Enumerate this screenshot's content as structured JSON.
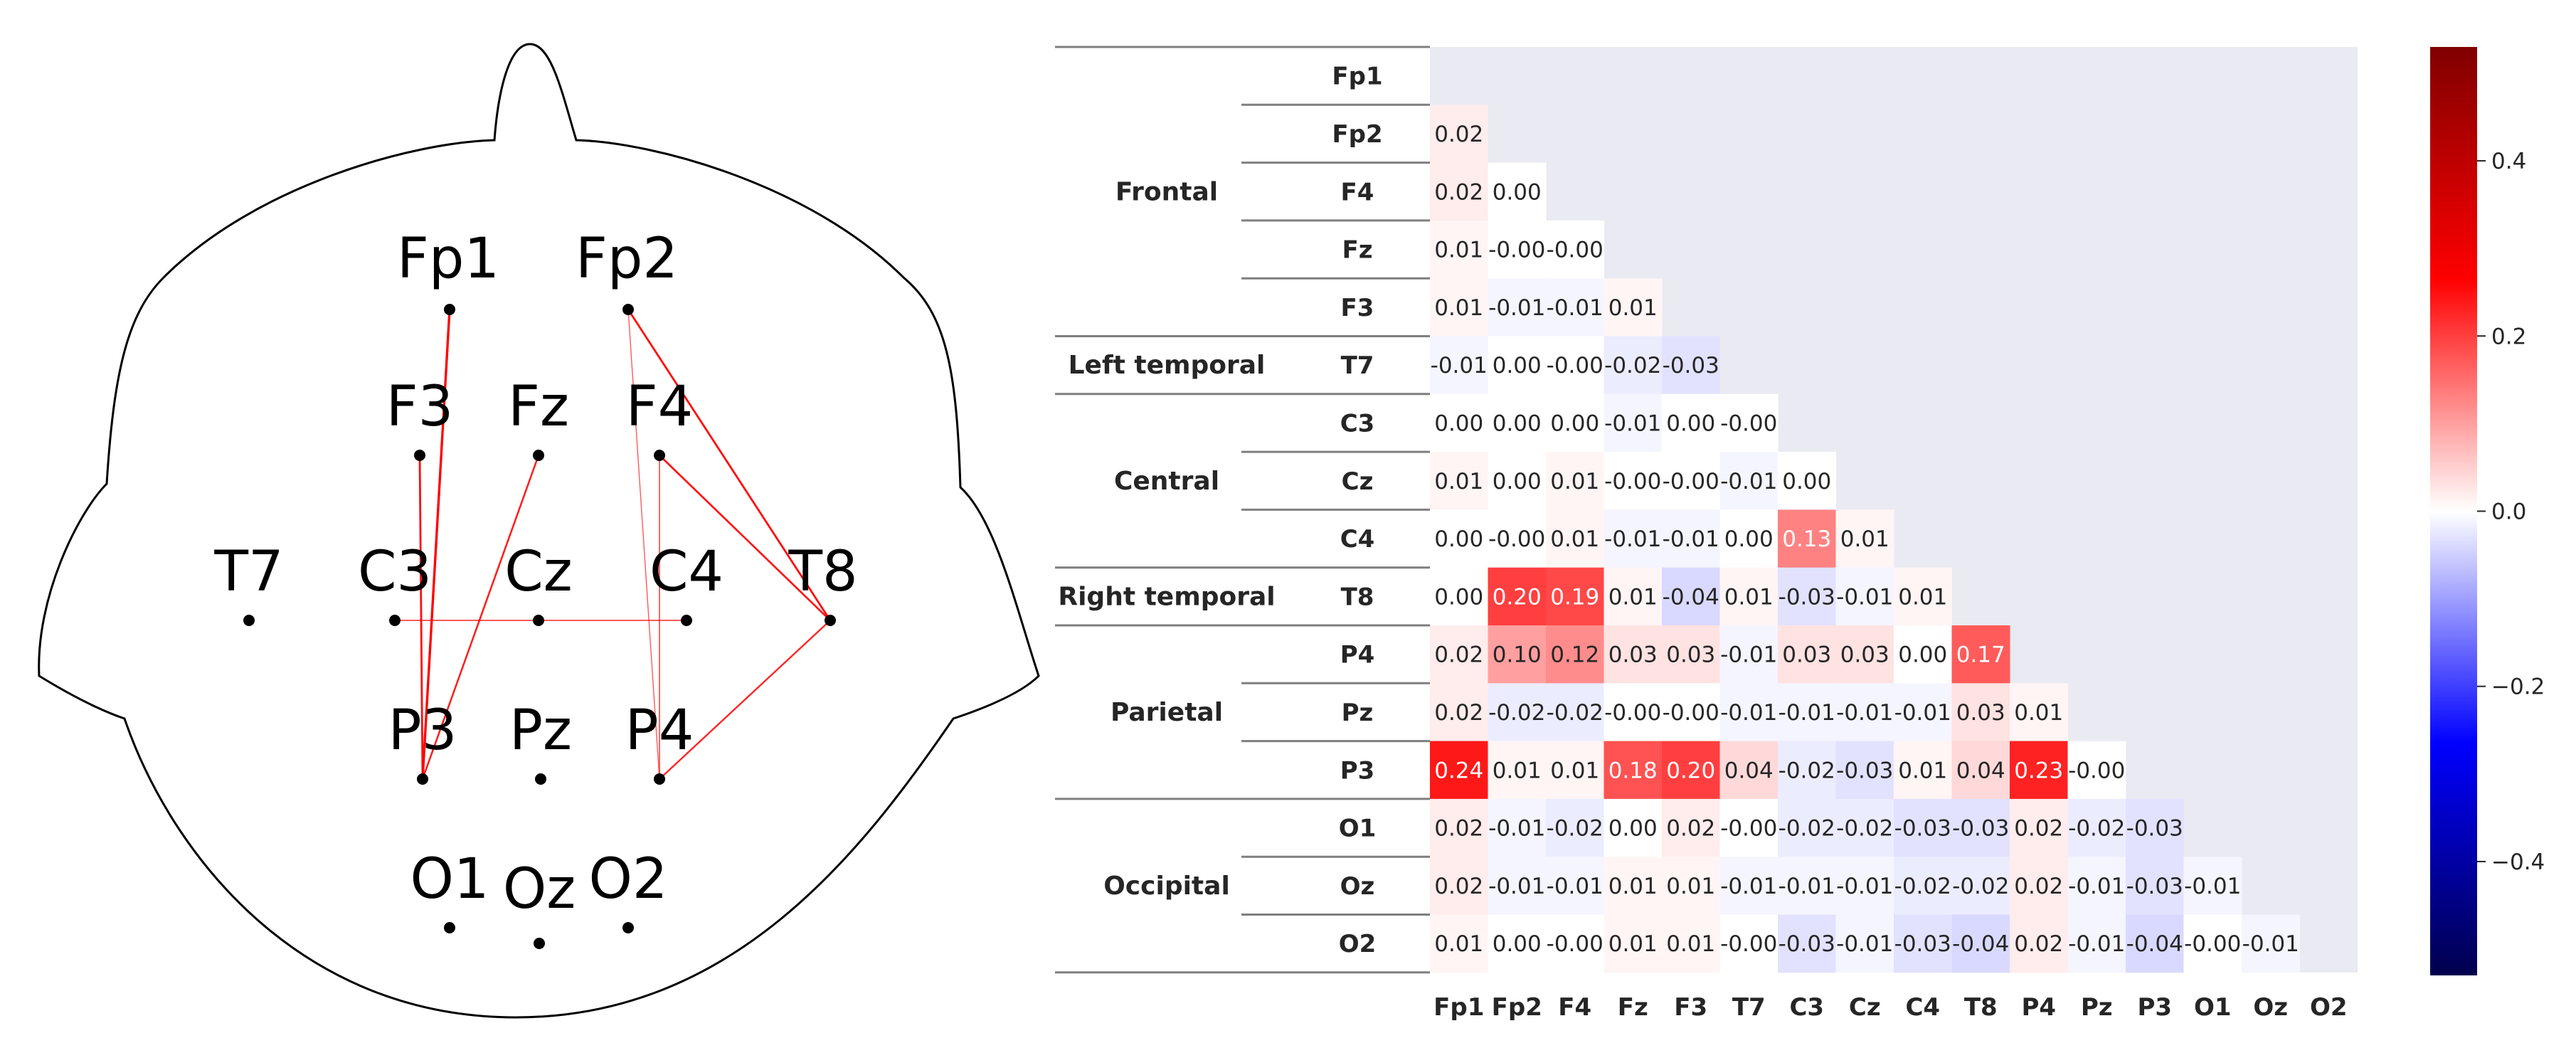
{
  "chart_data": [
    {
      "type": "network",
      "title": "",
      "electrodes": [
        "Fp1",
        "Fp2",
        "F3",
        "Fz",
        "F4",
        "T7",
        "C3",
        "Cz",
        "C4",
        "T8",
        "P3",
        "Pz",
        "P4",
        "O1",
        "Oz",
        "O2"
      ],
      "connections": [
        {
          "from": "Fp1",
          "to": "P3",
          "weight": 0.24
        },
        {
          "from": "Fp2",
          "to": "T8",
          "weight": 0.2
        },
        {
          "from": "F4",
          "to": "T8",
          "weight": 0.19
        },
        {
          "from": "F3",
          "to": "P3",
          "weight": 0.2
        },
        {
          "from": "Fz",
          "to": "P3",
          "weight": 0.18
        },
        {
          "from": "P4",
          "to": "T8",
          "weight": 0.17
        },
        {
          "from": "C4",
          "to": "C3",
          "weight": 0.13
        },
        {
          "from": "F4",
          "to": "P4",
          "weight": 0.12
        },
        {
          "from": "Fp2",
          "to": "P4",
          "weight": 0.1
        }
      ]
    },
    {
      "type": "heatmap",
      "title": "",
      "labels": [
        "Fp1",
        "Fp2",
        "F4",
        "Fz",
        "F3",
        "T7",
        "C3",
        "Cz",
        "C4",
        "T8",
        "P4",
        "Pz",
        "P3",
        "O1",
        "Oz",
        "O2"
      ],
      "groups": [
        {
          "name": "Frontal",
          "start": 0,
          "end": 4
        },
        {
          "name": "Left temporal",
          "start": 5,
          "end": 5
        },
        {
          "name": "Central",
          "start": 6,
          "end": 8
        },
        {
          "name": "Right temporal",
          "start": 9,
          "end": 9
        },
        {
          "name": "Parietal",
          "start": 10,
          "end": 12
        },
        {
          "name": "Occipital",
          "start": 13,
          "end": 15
        }
      ],
      "matrix": [
        [],
        [
          0.02
        ],
        [
          0.02,
          0.0
        ],
        [
          0.01,
          -0.0,
          -0.0
        ],
        [
          0.01,
          -0.01,
          -0.01,
          0.01
        ],
        [
          -0.01,
          0.0,
          -0.0,
          -0.02,
          -0.03
        ],
        [
          0.0,
          0.0,
          0.0,
          -0.01,
          0.0,
          -0.0
        ],
        [
          0.01,
          0.0,
          0.01,
          -0.0,
          -0.0,
          -0.01,
          0.0
        ],
        [
          0.0,
          -0.0,
          0.01,
          -0.01,
          -0.01,
          0.0,
          0.13,
          0.01
        ],
        [
          0.0,
          0.2,
          0.19,
          0.01,
          -0.04,
          0.01,
          -0.03,
          -0.01,
          0.01
        ],
        [
          0.02,
          0.1,
          0.12,
          0.03,
          0.03,
          -0.01,
          0.03,
          0.03,
          0.0,
          0.17
        ],
        [
          0.02,
          -0.02,
          -0.02,
          -0.0,
          -0.0,
          -0.01,
          -0.01,
          -0.01,
          -0.01,
          0.03,
          0.01
        ],
        [
          0.24,
          0.01,
          0.01,
          0.18,
          0.2,
          0.04,
          -0.02,
          -0.03,
          0.01,
          0.04,
          0.23,
          -0.0
        ],
        [
          0.02,
          -0.01,
          -0.02,
          0.0,
          0.02,
          -0.0,
          -0.02,
          -0.02,
          -0.03,
          -0.03,
          0.02,
          -0.02,
          -0.03
        ],
        [
          0.02,
          -0.01,
          -0.01,
          0.01,
          0.01,
          -0.01,
          -0.01,
          -0.01,
          -0.02,
          -0.02,
          0.02,
          -0.01,
          -0.03,
          -0.01
        ],
        [
          0.01,
          0.0,
          -0.0,
          0.01,
          0.01,
          -0.0,
          -0.03,
          -0.01,
          -0.03,
          -0.04,
          0.02,
          -0.01,
          -0.04,
          -0.0,
          -0.01
        ]
      ],
      "colorbar": {
        "vmin": -0.53,
        "vmax": 0.53,
        "ticks": [
          -0.4,
          -0.2,
          0.0,
          0.2,
          0.4
        ],
        "tick_labels": [
          "−0.4",
          "−0.2",
          "0.0",
          "0.2",
          "0.4"
        ],
        "colormap": "seismic"
      }
    }
  ],
  "colors": {
    "line": "#ff0000",
    "head_outline": "#000000",
    "masked": "#eaeaf2",
    "text": "#262626",
    "rule": "#7f7f7f"
  }
}
